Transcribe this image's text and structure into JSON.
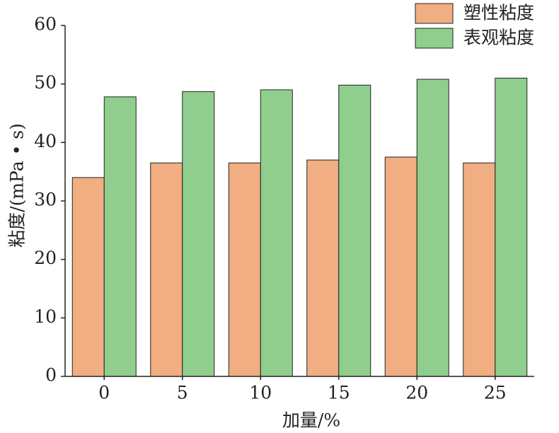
{
  "chart_data": {
    "type": "bar",
    "x_label": "加量/%",
    "y_label": "粘度/(mPa • s)",
    "categories": [
      "0",
      "5",
      "10",
      "15",
      "20",
      "25"
    ],
    "series": [
      {
        "name": "塑性粘度",
        "color": "#f0ae82",
        "values": [
          34,
          36.5,
          36.5,
          37,
          37.5,
          36.5
        ]
      },
      {
        "name": "表观粘度",
        "color": "#8fce8d",
        "values": [
          47.8,
          48.7,
          49,
          49.8,
          50.8,
          51
        ]
      }
    ],
    "ylim": [
      0,
      60
    ],
    "yticks": [
      0,
      10,
      20,
      30,
      40,
      50,
      60
    ],
    "legend": "upper right",
    "grid": false
  }
}
